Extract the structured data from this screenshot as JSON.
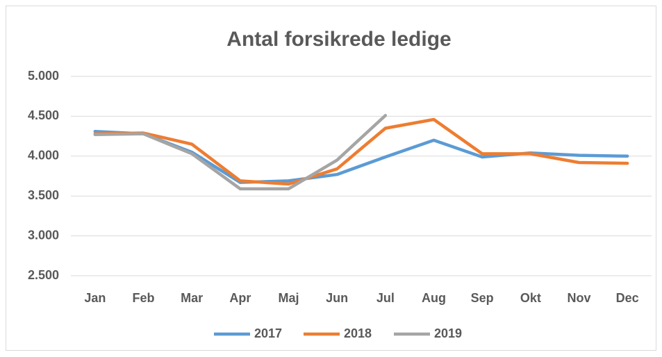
{
  "chart_data": {
    "type": "line",
    "title": "Antal forsikrede ledige",
    "categories": [
      "Jan",
      "Feb",
      "Mar",
      "Apr",
      "Maj",
      "Jun",
      "Jul",
      "Aug",
      "Sep",
      "Okt",
      "Nov",
      "Dec"
    ],
    "series": [
      {
        "name": "2017",
        "color": "#5b9bd5",
        "values": [
          4310,
          4280,
          4050,
          3670,
          3690,
          3770,
          3990,
          4200,
          3990,
          4040,
          4010,
          4000
        ]
      },
      {
        "name": "2018",
        "color": "#ed7d31",
        "values": [
          4280,
          4290,
          4150,
          3690,
          3650,
          3840,
          4350,
          4460,
          4030,
          4030,
          3920,
          3910
        ]
      },
      {
        "name": "2019",
        "color": "#a5a5a5",
        "values": [
          4270,
          4280,
          4030,
          3590,
          3590,
          3950,
          4510,
          null,
          null,
          null,
          null,
          null
        ]
      }
    ],
    "ylim": [
      2500,
      5000
    ],
    "yticks": [
      {
        "value": 2500,
        "label": "2.500"
      },
      {
        "value": 3000,
        "label": "3.000"
      },
      {
        "value": 3500,
        "label": "3.500"
      },
      {
        "value": 4000,
        "label": "4.000"
      },
      {
        "value": 4500,
        "label": "4.500"
      },
      {
        "value": 5000,
        "label": "5.000"
      }
    ],
    "grid": true,
    "legend": "bottom"
  }
}
